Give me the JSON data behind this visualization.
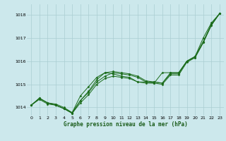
{
  "title": "",
  "xlabel": "Graphe pression niveau de la mer (hPa)",
  "bg_color": "#cce8ec",
  "grid_color": "#aacdd2",
  "line_color": "#1a6b1a",
  "xlim": [
    -0.5,
    23.5
  ],
  "ylim": [
    1013.65,
    1018.45
  ],
  "yticks": [
    1014,
    1015,
    1016,
    1017,
    1018
  ],
  "xticks": [
    0,
    1,
    2,
    3,
    4,
    5,
    6,
    7,
    8,
    9,
    10,
    11,
    12,
    13,
    14,
    15,
    16,
    17,
    18,
    19,
    20,
    21,
    22,
    23
  ],
  "series": [
    {
      "x": [
        0,
        1,
        2,
        3,
        4,
        5,
        6,
        7,
        8,
        9,
        10,
        11,
        12,
        13,
        14,
        15,
        16,
        17,
        18,
        19,
        20,
        21,
        22,
        23
      ],
      "y": [
        1014.1,
        1014.4,
        1014.2,
        1014.15,
        1014.0,
        1013.78,
        1014.3,
        1014.65,
        1015.1,
        1015.35,
        1015.5,
        1015.45,
        1015.4,
        1015.3,
        1015.1,
        1015.1,
        1015.05,
        1015.45,
        1015.45,
        1016.0,
        1016.2,
        1017.0,
        1017.65,
        1018.05
      ]
    },
    {
      "x": [
        0,
        1,
        2,
        3,
        4,
        5,
        6,
        7,
        8,
        9,
        10,
        11,
        12,
        13,
        14,
        15,
        16,
        17,
        18,
        19,
        20,
        21,
        22,
        23
      ],
      "y": [
        1014.1,
        1014.4,
        1014.2,
        1014.1,
        1013.95,
        1013.78,
        1014.5,
        1014.9,
        1015.3,
        1015.5,
        1015.45,
        1015.35,
        1015.3,
        1015.1,
        1015.1,
        1015.05,
        1015.5,
        1015.5,
        1015.5,
        1016.0,
        1016.2,
        1016.85,
        1017.6,
        1018.05
      ]
    },
    {
      "x": [
        0,
        1,
        2,
        3,
        4,
        5,
        6,
        7,
        8,
        9,
        10,
        11,
        12,
        13,
        14,
        15,
        16,
        17,
        18,
        19,
        20,
        21,
        22,
        23
      ],
      "y": [
        1014.1,
        1014.35,
        1014.15,
        1014.1,
        1013.95,
        1013.75,
        1014.2,
        1014.55,
        1015.0,
        1015.25,
        1015.35,
        1015.3,
        1015.25,
        1015.1,
        1015.05,
        1015.05,
        1015.0,
        1015.4,
        1015.4,
        1015.95,
        1016.15,
        1016.8,
        1017.55,
        1018.05
      ]
    },
    {
      "x": [
        0,
        1,
        2,
        3,
        4,
        5,
        6,
        7,
        8,
        9,
        10,
        11,
        12,
        13,
        14,
        15,
        16,
        17,
        18,
        19,
        20,
        21,
        22,
        23
      ],
      "y": [
        1014.1,
        1014.4,
        1014.2,
        1014.1,
        1013.95,
        1013.75,
        1014.3,
        1014.7,
        1015.2,
        1015.5,
        1015.55,
        1015.5,
        1015.45,
        1015.35,
        1015.15,
        1015.1,
        1015.05,
        1015.5,
        1015.5,
        1016.0,
        1016.15,
        1016.8,
        1017.55,
        1018.05
      ]
    }
  ]
}
